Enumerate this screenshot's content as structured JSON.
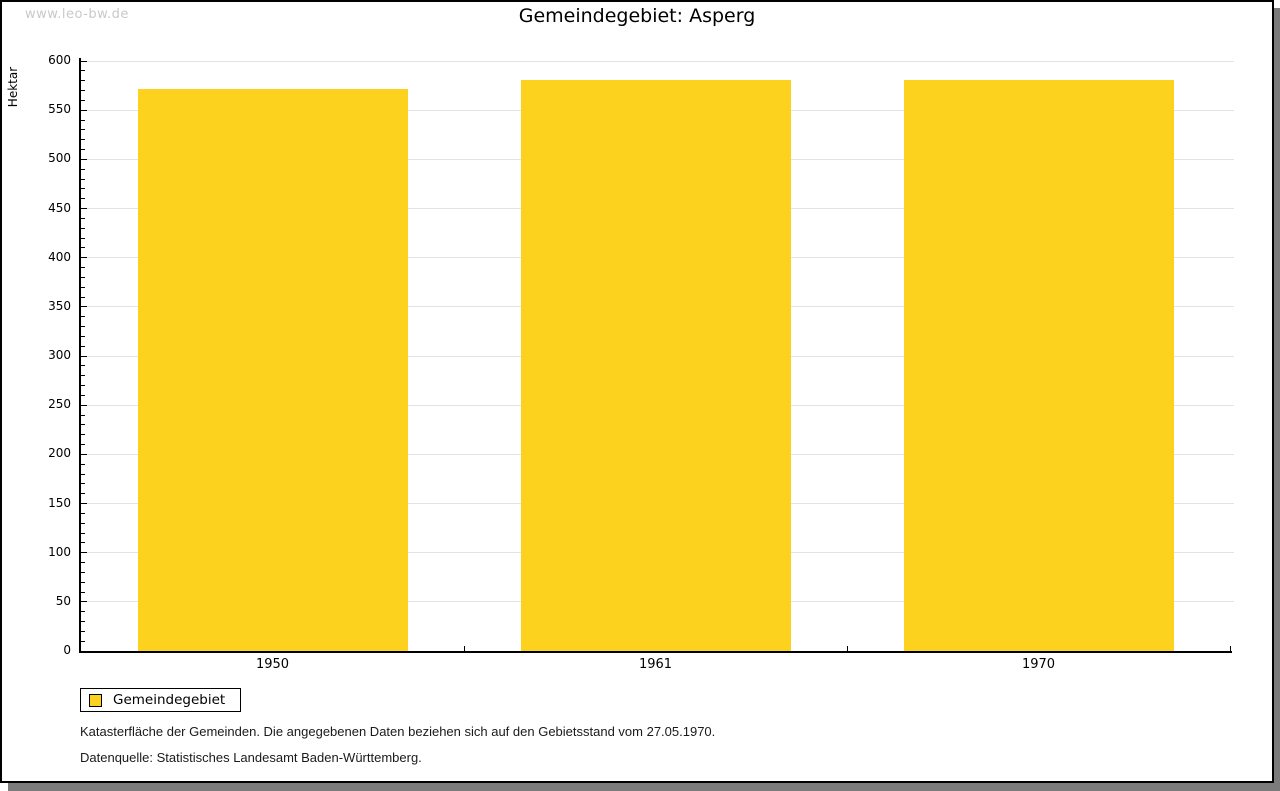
{
  "watermark": "www.leo-bw.de",
  "title": "Gemeindegebiet: Asperg",
  "chart_data": {
    "type": "bar",
    "title": "Gemeindegebiet: Asperg",
    "categories": [
      "1950",
      "1961",
      "1970"
    ],
    "values": [
      572,
      581,
      581
    ],
    "series_name": "Gemeindegebiet",
    "xlabel": "",
    "ylabel": "Hektar",
    "ylim": [
      0,
      600
    ],
    "y_tick_labels": [
      0,
      50,
      100,
      150,
      200,
      250,
      300,
      350,
      400,
      450,
      500,
      550,
      600
    ],
    "y_minor_step": 10,
    "grid": "horizontal major gridlines",
    "legend_position": "bottom-left",
    "bar_color": "#FCD21F",
    "gridline_color": "#e3e3e3"
  },
  "legend": {
    "label": "Gemeindegebiet"
  },
  "notes": {
    "footnote": "Katasterfläche der Gemeinden. Die angegebenen Daten beziehen sich auf den Gebietsstand vom 27.05.1970.",
    "source": "Datenquelle: Statistisches Landesamt Baden-Württemberg."
  }
}
